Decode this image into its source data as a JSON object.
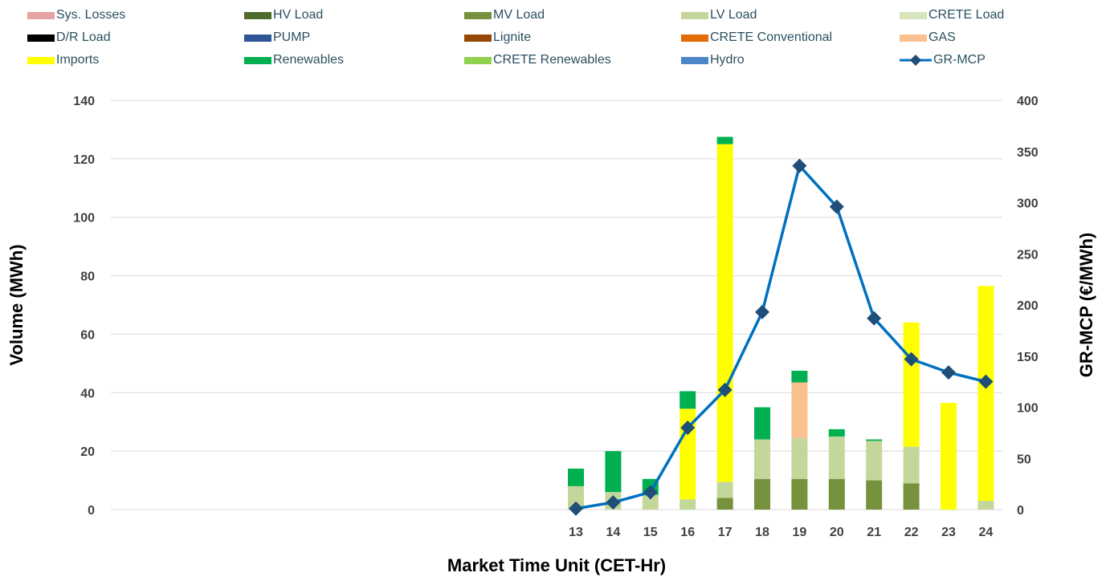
{
  "chart_data": {
    "type": "bar",
    "stacked": true,
    "xlabel": "Market Time Unit (CET-Hr)",
    "ylabel": "Volume (MWh)",
    "y2label": "GR-MCP (€/MWh)",
    "ylim": [
      0,
      140
    ],
    "y2lim": [
      0,
      400
    ],
    "y_ticks": [
      "0",
      "20",
      "40",
      "60",
      "80",
      "100",
      "120",
      "140"
    ],
    "y2_ticks": [
      "0",
      "50",
      "100",
      "150",
      "200",
      "250",
      "300",
      "350",
      "400"
    ],
    "grid": true,
    "legend_position": "top",
    "categories": [
      "13",
      "14",
      "15",
      "16",
      "17",
      "18",
      "19",
      "20",
      "21",
      "22",
      "23",
      "24"
    ],
    "series": [
      {
        "name": "Sys. Losses",
        "color": "#e6a3a3",
        "values": [
          0,
          0,
          0,
          0,
          0,
          0,
          0,
          0,
          0,
          0,
          0,
          0
        ]
      },
      {
        "name": "HV Load",
        "color": "#4e6b2e",
        "values": [
          0,
          0,
          0,
          0,
          0,
          0,
          0,
          0,
          0,
          0,
          0,
          0
        ]
      },
      {
        "name": "MV Load",
        "color": "#76923c",
        "values": [
          0,
          0,
          0,
          0,
          4,
          10.5,
          10.5,
          10.5,
          10,
          9,
          0,
          0
        ]
      },
      {
        "name": "LV Load",
        "color": "#c4d79b",
        "values": [
          8,
          6,
          5,
          3.5,
          5.5,
          13.5,
          14,
          14.5,
          13.5,
          12.5,
          0,
          3
        ]
      },
      {
        "name": "CRETE Load",
        "color": "#d8e4bc",
        "values": [
          0,
          0,
          0,
          0,
          0,
          0,
          0,
          0,
          0,
          0,
          0,
          0
        ]
      },
      {
        "name": "D/R Load",
        "color": "#000000",
        "values": [
          0,
          0,
          0,
          0,
          0,
          0,
          0,
          0,
          0,
          0,
          0,
          0
        ]
      },
      {
        "name": "PUMP",
        "color": "#2f5597",
        "values": [
          0,
          0,
          0,
          0,
          0,
          0,
          0,
          0,
          0,
          0,
          0,
          0
        ]
      },
      {
        "name": "Lignite",
        "color": "#974706",
        "values": [
          0,
          0,
          0,
          0,
          0,
          0,
          0,
          0,
          0,
          0,
          0,
          0
        ]
      },
      {
        "name": "CRETE Conventional",
        "color": "#e36c09",
        "values": [
          0,
          0,
          0,
          0,
          0,
          0,
          0,
          0,
          0,
          0,
          0,
          0
        ]
      },
      {
        "name": "GAS",
        "color": "#fac090",
        "values": [
          0,
          0,
          0,
          0,
          0,
          0,
          19,
          0,
          0,
          0,
          0,
          0
        ]
      },
      {
        "name": "Imports",
        "color": "#ffff00",
        "values": [
          0,
          0,
          0,
          31,
          115.5,
          0,
          0,
          0,
          0,
          42.5,
          36.5,
          73.5
        ]
      },
      {
        "name": "Renewables",
        "color": "#00b050",
        "values": [
          6,
          14,
          5.5,
          6,
          2.5,
          11,
          4,
          2.5,
          0.5,
          0,
          0,
          0
        ]
      },
      {
        "name": "CRETE Renewables",
        "color": "#92d050",
        "values": [
          0,
          0,
          0,
          0,
          0,
          0,
          0,
          0,
          0,
          0,
          0,
          0
        ]
      },
      {
        "name": "Hydro",
        "color": "#4a86c8",
        "values": [
          0,
          0,
          0,
          0,
          0,
          0,
          0,
          0,
          0,
          0,
          0,
          0
        ]
      }
    ],
    "line_series": {
      "name": "GR-MCP",
      "axis": "right",
      "color": "#0070c0",
      "marker_color": "#1f4e79",
      "values": [
        1,
        7,
        17,
        80,
        117,
        193,
        336,
        296,
        187,
        147,
        134,
        125
      ]
    }
  }
}
